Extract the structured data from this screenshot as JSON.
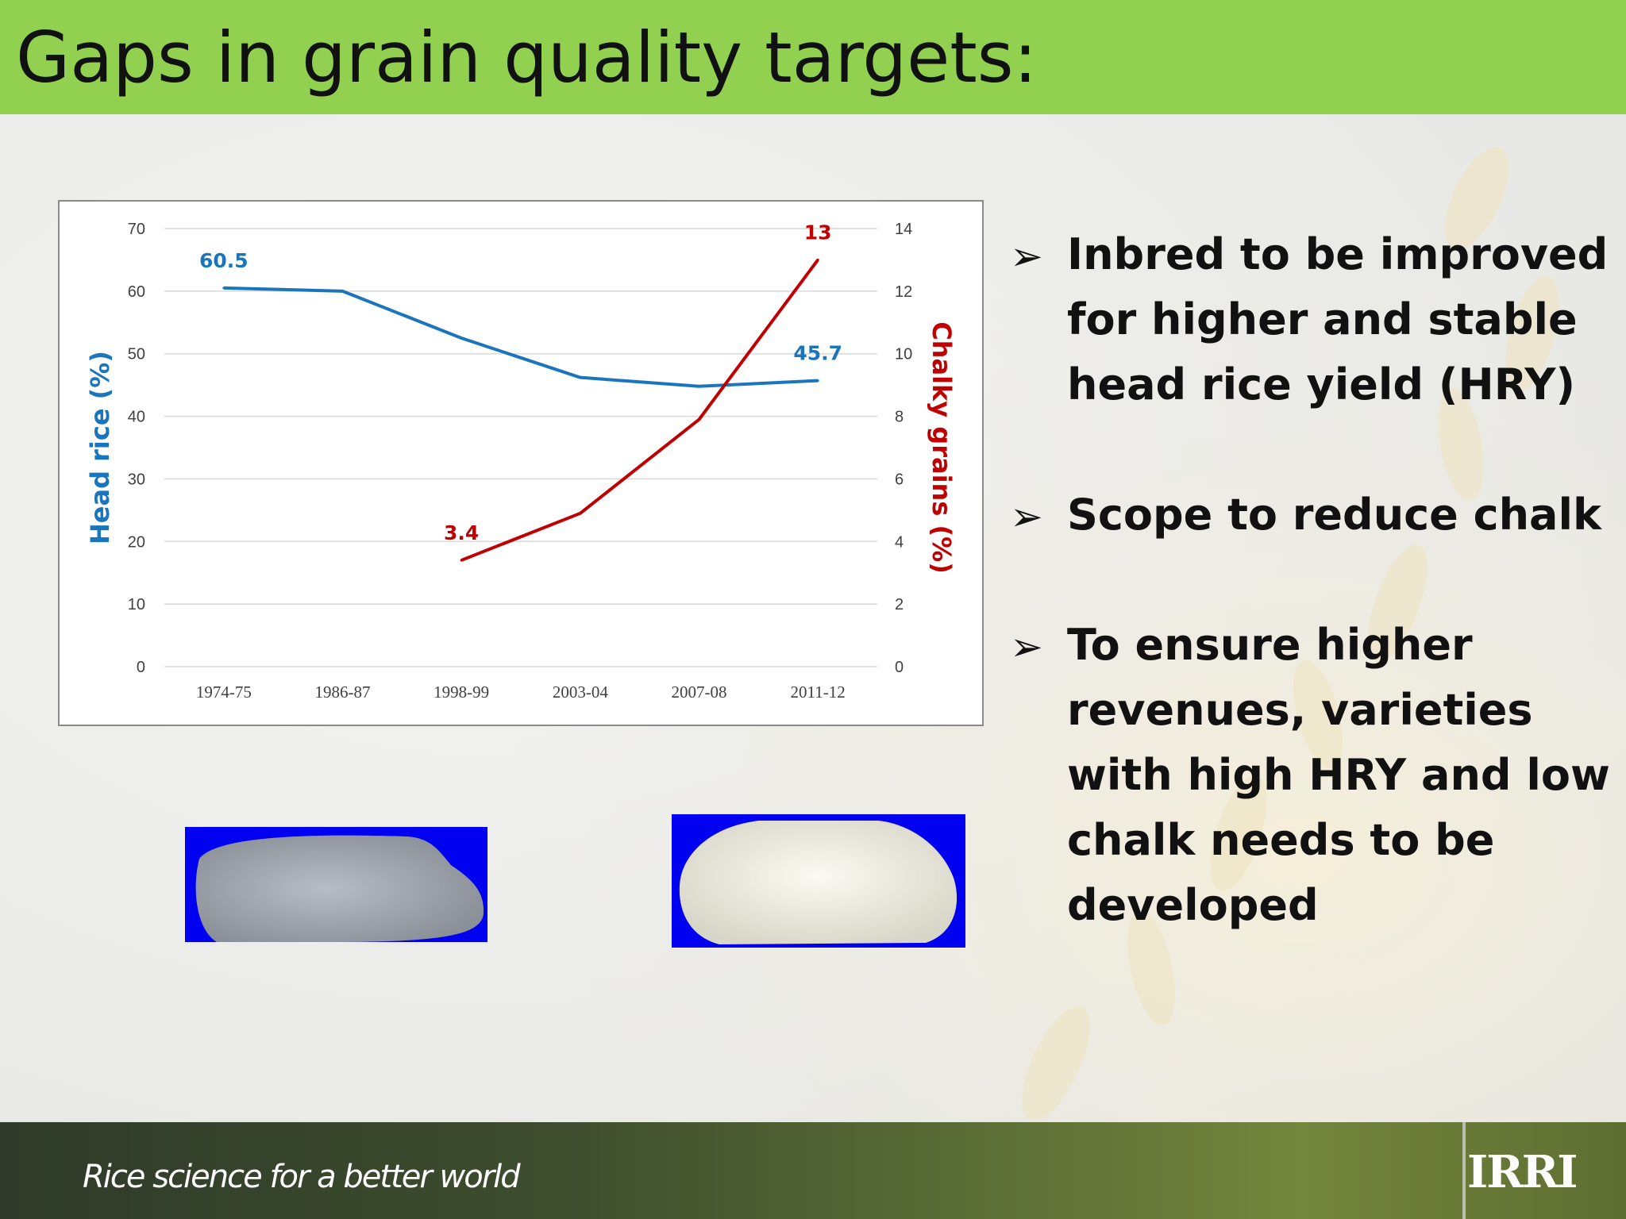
{
  "slide": {
    "title": "Gaps in grain quality targets:",
    "tagline": "Rice science for a better world",
    "logo": "IRRI"
  },
  "bullets": [
    {
      "arrow": "➢",
      "text": "Inbred to be improved for higher and stable head rice yield (HRY)"
    },
    {
      "arrow": "➢",
      "text": "Scope to reduce chalk"
    },
    {
      "arrow": "➢",
      "text": "To ensure higher revenues, varieties with high HRY and low chalk needs to be developed"
    }
  ],
  "chart_data": {
    "type": "line",
    "categories": [
      "1974-75",
      "1986-87",
      "1998-99",
      "2003-04",
      "2007-08",
      "2011-12"
    ],
    "series": [
      {
        "name": "Head rice (%)",
        "axis": "left",
        "color": "#1b75bc",
        "values": [
          60.5,
          60,
          52.5,
          46.2,
          44.8,
          45.7
        ],
        "labels": [
          "60.5",
          null,
          null,
          null,
          null,
          "45.7"
        ]
      },
      {
        "name": "Chalky grains (%)",
        "axis": "right",
        "color": "#c00000",
        "values": [
          null,
          null,
          3.4,
          4.9,
          7.9,
          13
        ],
        "labels": [
          null,
          null,
          "3.4",
          null,
          null,
          "13"
        ]
      }
    ],
    "ylabel_left": "Head rice (%)",
    "ylabel_right": "Chalky grains (%)",
    "ylim_left": [
      0,
      70
    ],
    "ylim_right": [
      0,
      14
    ],
    "yticks_left": [
      "0",
      "10",
      "20",
      "30",
      "40",
      "50",
      "60",
      "70"
    ],
    "yticks_right": [
      "0",
      "2",
      "4",
      "6",
      "8",
      "10",
      "12",
      "14"
    ],
    "grid": true
  }
}
